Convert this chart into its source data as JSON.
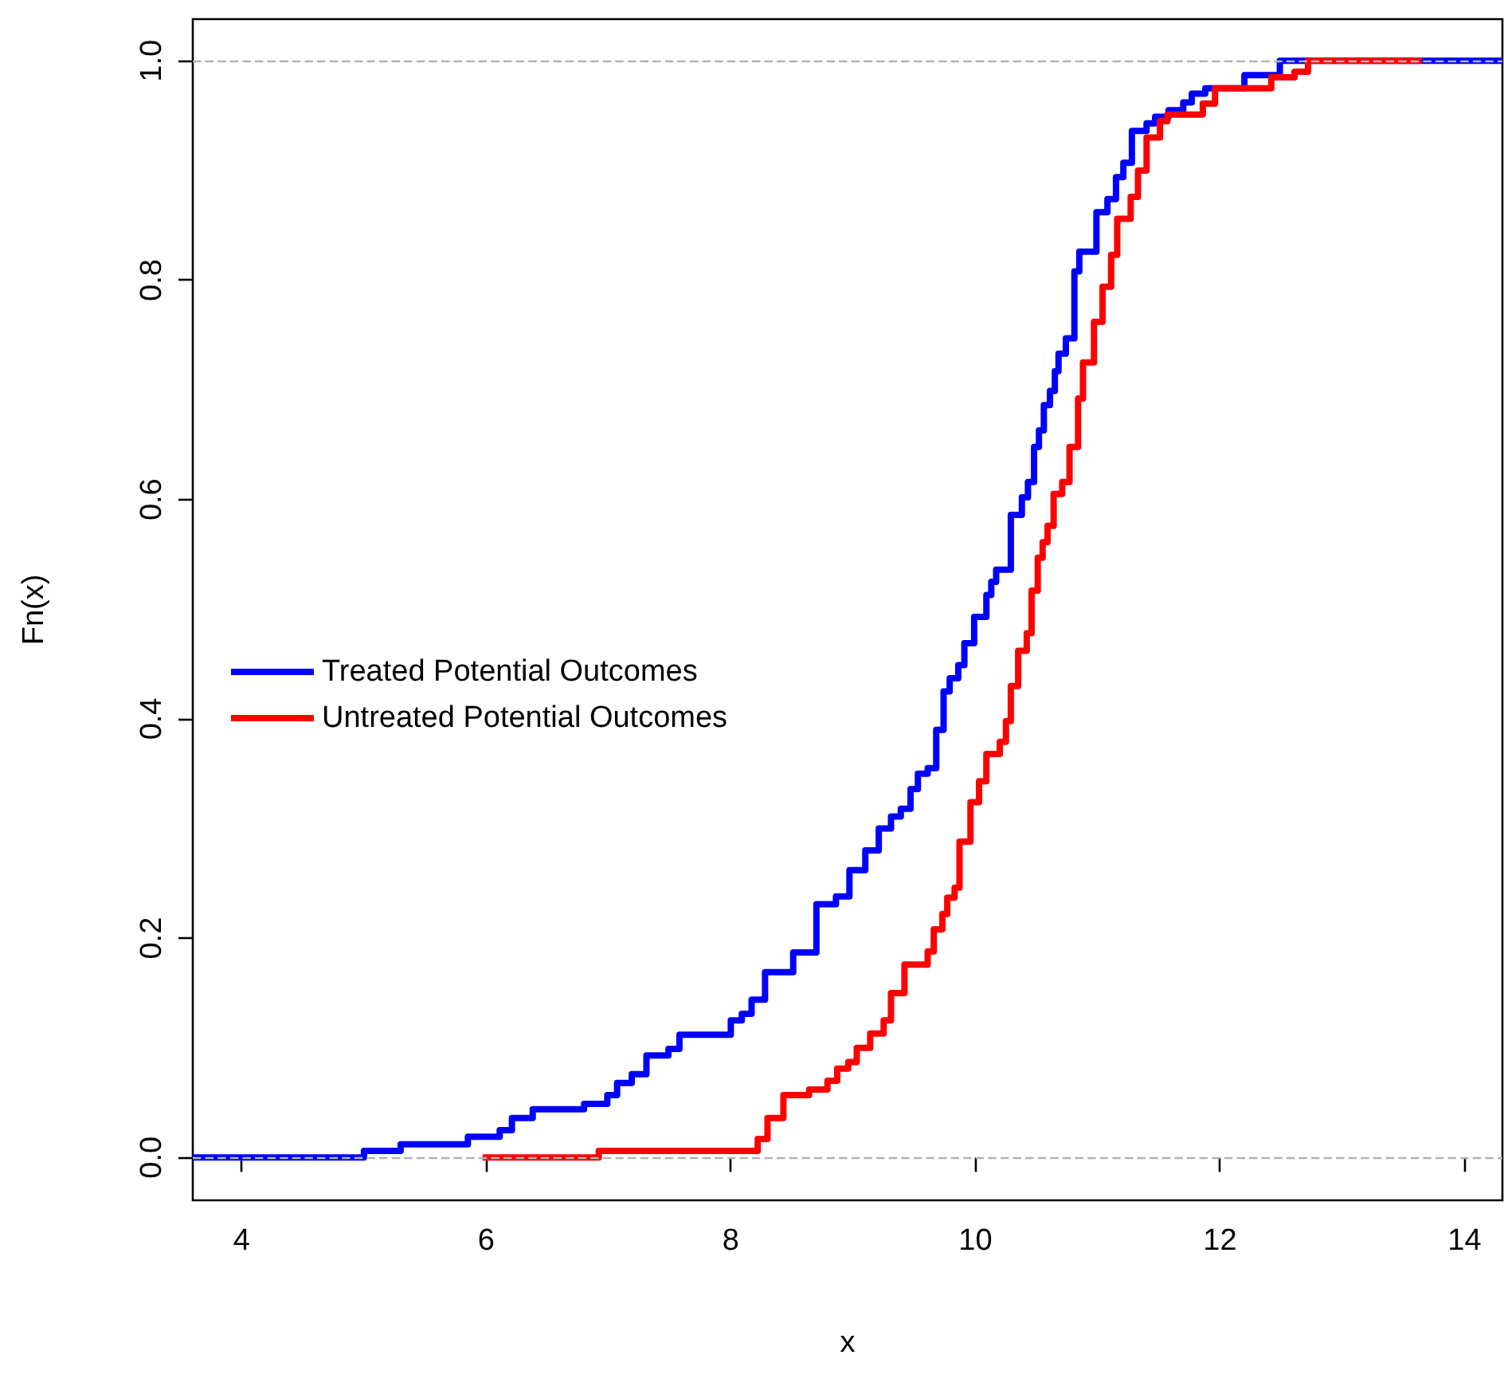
{
  "chart_data": {
    "type": "step",
    "xlabel": "x",
    "ylabel": "Fn(x)",
    "xlim": [
      3.6,
      14.31
    ],
    "ylim": [
      -0.039,
      1.038
    ],
    "xticks": [
      4,
      6,
      8,
      10,
      12,
      14
    ],
    "yticks": [
      {
        "value": 0,
        "label": "0.0"
      },
      {
        "value": 0.2,
        "label": "0.2"
      },
      {
        "value": 0.4,
        "label": "0.4"
      },
      {
        "value": 0.6,
        "label": "0.6"
      },
      {
        "value": 0.8,
        "label": "0.8"
      },
      {
        "value": 1,
        "label": "1.0"
      }
    ],
    "grid": false,
    "legend": "left",
    "marker": "none",
    "line_style": "solid",
    "ref_lines": [
      {
        "axis": "y",
        "value": 0,
        "label": null,
        "color": "#b3b3b3",
        "line_style": "dashed"
      },
      {
        "axis": "y",
        "value": 1,
        "label": null,
        "color": "#b3b3b3",
        "line_style": "dashed"
      }
    ],
    "series": [
      {
        "name": "Treated Potential Outcomes",
        "color": "#0000ff",
        "x": [
          3.6,
          5.0,
          5.3,
          5.85,
          6.11,
          6.21,
          6.38,
          6.8,
          6.99,
          7.07,
          7.19,
          7.31,
          7.49,
          7.58,
          8.0,
          8.09,
          8.17,
          8.28,
          8.51,
          8.7,
          8.86,
          8.97,
          9.1,
          9.21,
          9.31,
          9.39,
          9.47,
          9.53,
          9.61,
          9.68,
          9.74,
          9.79,
          9.86,
          9.91,
          9.99,
          10.09,
          10.13,
          10.17,
          10.29,
          10.38,
          10.43,
          10.48,
          10.52,
          10.56,
          10.61,
          10.65,
          10.68,
          10.74,
          10.81,
          10.85,
          10.99,
          11.08,
          11.15,
          11.21,
          11.28,
          11.4,
          11.47,
          11.58,
          11.7,
          11.77,
          11.88,
          12.2,
          12.49,
          14.31
        ],
        "values": [
          0,
          0.006,
          0.012,
          0.019,
          0.025,
          0.036,
          0.044,
          0.049,
          0.057,
          0.068,
          0.076,
          0.093,
          0.099,
          0.112,
          0.125,
          0.131,
          0.144,
          0.169,
          0.187,
          0.231,
          0.238,
          0.262,
          0.28,
          0.3,
          0.311,
          0.318,
          0.336,
          0.35,
          0.355,
          0.39,
          0.425,
          0.437,
          0.449,
          0.469,
          0.493,
          0.513,
          0.525,
          0.536,
          0.586,
          0.602,
          0.616,
          0.648,
          0.663,
          0.686,
          0.699,
          0.717,
          0.733,
          0.747,
          0.808,
          0.826,
          0.862,
          0.874,
          0.894,
          0.907,
          0.936,
          0.943,
          0.949,
          0.955,
          0.962,
          0.97,
          0.975,
          0.987,
          1,
          1
        ]
      },
      {
        "name": "Untreated Potential Outcomes",
        "color": "#ff0000",
        "x": [
          5.97,
          6.92,
          8.22,
          8.3,
          8.43,
          8.64,
          8.79,
          8.87,
          8.96,
          9.03,
          9.14,
          9.25,
          9.31,
          9.42,
          9.61,
          9.66,
          9.73,
          9.77,
          9.83,
          9.87,
          9.96,
          10.03,
          10.09,
          10.2,
          10.25,
          10.29,
          10.35,
          10.42,
          10.46,
          10.51,
          10.55,
          10.59,
          10.64,
          10.71,
          10.77,
          10.84,
          10.88,
          10.97,
          11.04,
          11.11,
          11.16,
          11.27,
          11.33,
          11.4,
          11.51,
          11.57,
          11.86,
          11.96,
          12.42,
          12.61,
          12.72,
          13.65
        ],
        "values": [
          0,
          0.006,
          0.017,
          0.036,
          0.057,
          0.062,
          0.07,
          0.081,
          0.087,
          0.1,
          0.113,
          0.125,
          0.15,
          0.176,
          0.188,
          0.208,
          0.222,
          0.237,
          0.246,
          0.288,
          0.324,
          0.343,
          0.368,
          0.379,
          0.398,
          0.43,
          0.462,
          0.478,
          0.517,
          0.547,
          0.561,
          0.576,
          0.605,
          0.616,
          0.648,
          0.692,
          0.725,
          0.762,
          0.794,
          0.823,
          0.856,
          0.876,
          0.9,
          0.93,
          0.945,
          0.951,
          0.961,
          0.975,
          0.985,
          0.99,
          1,
          1
        ]
      }
    ]
  }
}
